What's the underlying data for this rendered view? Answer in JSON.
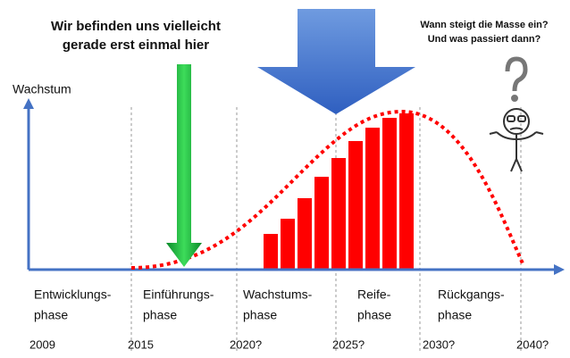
{
  "title_lines": [
    "Wir befinden uns vielleicht",
    "gerade erst einmal hier"
  ],
  "question_lines": [
    "Wann steigt die Masse ein?",
    "Und was passiert dann?"
  ],
  "y_axis_label": "Wachstum",
  "phases": [
    {
      "lines": [
        "Entwicklungs-",
        "phase"
      ],
      "year": "2009"
    },
    {
      "lines": [
        "Einführungs-",
        "phase"
      ],
      "year": "2015"
    },
    {
      "lines": [
        "Wachstums-",
        "phase"
      ],
      "year": "2020?"
    },
    {
      "lines": [
        "Reife-",
        "phase"
      ],
      "year": "2025?"
    },
    {
      "lines": [
        "Rückgangs-",
        "phase"
      ],
      "year": "2030?"
    }
  ],
  "end_year": "2040?"
}
